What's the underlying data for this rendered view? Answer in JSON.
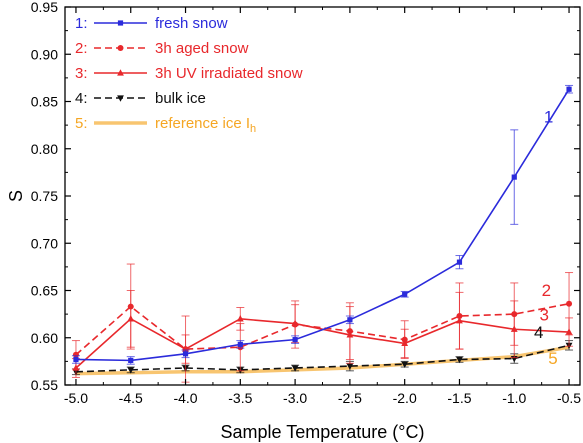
{
  "chart_data": {
    "type": "line",
    "xlabel": "Sample Temperature (°C)",
    "ylabel": "S",
    "xlim": [
      -5.1,
      -0.4
    ],
    "ylim": [
      0.55,
      0.95
    ],
    "x_ticks": [
      -5.0,
      -4.5,
      -4.0,
      -3.5,
      -3.0,
      -2.5,
      -2.0,
      -1.5,
      -1.0,
      -0.5
    ],
    "x_tick_labels": [
      "-5.0",
      "-4.5",
      "-4.0",
      "-3.5",
      "-3.0",
      "-2.5",
      "-2.0",
      "-1.5",
      "-1.0",
      "-0.5"
    ],
    "y_ticks": [
      0.55,
      0.6,
      0.65,
      0.7,
      0.75,
      0.8,
      0.85,
      0.9,
      0.95
    ],
    "y_tick_labels": [
      "0.55",
      "0.60",
      "0.65",
      "0.70",
      "0.75",
      "0.80",
      "0.85",
      "0.90",
      "0.95"
    ],
    "grid": false,
    "legend_position": "top-left",
    "x": [
      -5.0,
      -4.5,
      -4.0,
      -3.5,
      -3.0,
      -2.5,
      -2.0,
      -1.5,
      -1.0,
      -0.5
    ],
    "series": [
      {
        "id": "fresh-snow",
        "number": "1:",
        "name": "fresh snow",
        "curve_label": "1",
        "color": "#2b2bdb",
        "dash": "solid",
        "marker": "square",
        "values": [
          0.577,
          0.576,
          0.583,
          0.593,
          0.598,
          0.619,
          0.646,
          0.68,
          0.77,
          0.863
        ],
        "errors": [
          0.004,
          0.004,
          0.004,
          0.004,
          0.004,
          0.004,
          0.003,
          0.007,
          0.05,
          0.004
        ]
      },
      {
        "id": "aged-snow",
        "number": "2:",
        "name": "3h aged snow",
        "curve_label": "2",
        "color": "#e8282c",
        "dash": "dashed",
        "marker": "circle",
        "values": [
          0.582,
          0.633,
          0.588,
          0.59,
          0.614,
          0.607,
          0.598,
          0.623,
          0.625,
          0.636
        ],
        "errors": [
          0.015,
          0.045,
          0.035,
          0.025,
          0.025,
          0.03,
          0.02,
          0.035,
          0.033,
          0.033
        ]
      },
      {
        "id": "uv-snow",
        "number": "3:",
        "name": "3h UV irradiated snow",
        "curve_label": "3",
        "color": "#e8282c",
        "dash": "solid",
        "marker": "triangle-up",
        "values": [
          0.568,
          0.62,
          0.588,
          0.62,
          0.615,
          0.603,
          0.594,
          0.618,
          0.609,
          0.606
        ],
        "errors": [
          0.01,
          0.03,
          0.015,
          0.012,
          0.02,
          0.03,
          0.015,
          0.03,
          0.03,
          0.015
        ]
      },
      {
        "id": "bulk-ice",
        "number": "4:",
        "name": "bulk ice",
        "curve_label": "4",
        "color": "#111111",
        "dash": "dashed",
        "marker": "triangle-down",
        "values": [
          0.564,
          0.566,
          0.568,
          0.566,
          0.568,
          0.57,
          0.572,
          0.577,
          0.578,
          0.592
        ],
        "errors": [
          0.003,
          0.003,
          0.003,
          0.003,
          0.003,
          0.005,
          0.003,
          0.003,
          0.005,
          0.005
        ]
      },
      {
        "id": "reference-ice",
        "number": "5:",
        "name": "reference ice I",
        "name_subscript": "h",
        "curve_label": "5",
        "color": "#f5a623",
        "dash": "solid",
        "marker": "none",
        "values": [
          0.562,
          0.563,
          0.564,
          0.564,
          0.566,
          0.568,
          0.572,
          0.576,
          0.58,
          0.59
        ],
        "errors": []
      }
    ],
    "curve_label_positions": [
      {
        "series": "fresh-snow",
        "x": -0.73,
        "y": 0.828
      },
      {
        "series": "aged-snow",
        "x": -0.75,
        "y": 0.644
      },
      {
        "series": "uv-snow",
        "x": -0.77,
        "y": 0.618
      },
      {
        "series": "bulk-ice",
        "x": -0.82,
        "y": 0.6
      },
      {
        "series": "reference-ice",
        "x": -0.69,
        "y": 0.572
      }
    ]
  }
}
